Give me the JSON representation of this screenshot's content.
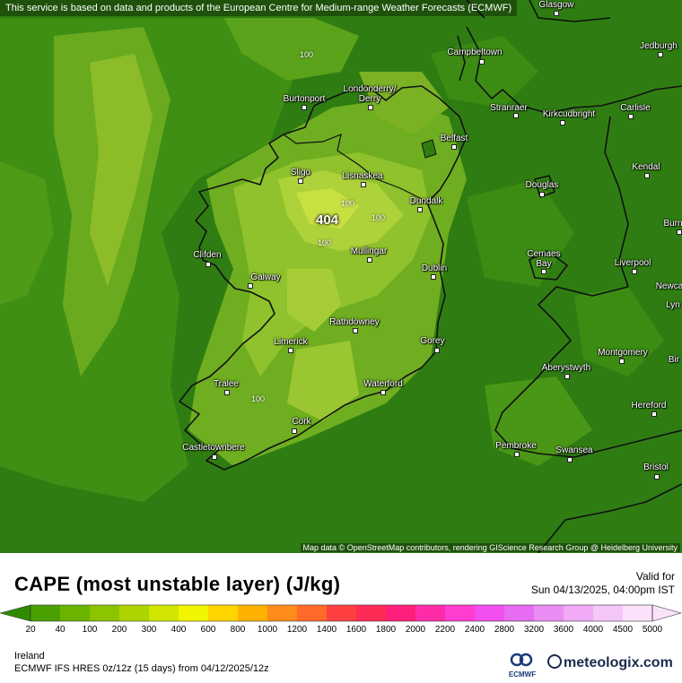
{
  "map": {
    "attribution_top": "This service is based on data and products of the European Centre for Medium-range Weather Forecasts (ECMWF)",
    "attribution_bottom": "Map data © OpenStreetMap contributors, rendering GIScience Research Group @ Heidelberg University",
    "peak_value": "404",
    "contour_label": "100",
    "cities": [
      {
        "name": "Glasgow"
      },
      {
        "name": "Jedburgh"
      },
      {
        "name": "Campbeltown"
      },
      {
        "name": "Londonderry/"
      },
      {
        "name": "Derry"
      },
      {
        "name": "Burtonport"
      },
      {
        "name": "Stranraer"
      },
      {
        "name": "Kirkcudbright"
      },
      {
        "name": "Carlisle"
      },
      {
        "name": "Belfast"
      },
      {
        "name": "Sligo"
      },
      {
        "name": "Lisnaskea"
      },
      {
        "name": "Kendal"
      },
      {
        "name": "Douglas"
      },
      {
        "name": "Dundalk"
      },
      {
        "name": "Burn"
      },
      {
        "name": "Clifden"
      },
      {
        "name": "Mullingar"
      },
      {
        "name": "Dublin"
      },
      {
        "name": "Cemaes"
      },
      {
        "name": "Bay"
      },
      {
        "name": "Liverpool"
      },
      {
        "name": "Galway"
      },
      {
        "name": "Newca"
      },
      {
        "name": "Lyn"
      },
      {
        "name": "Rathdowney"
      },
      {
        "name": "Limerick"
      },
      {
        "name": "Gorey"
      },
      {
        "name": "Montgomery"
      },
      {
        "name": "Aberystwyth"
      },
      {
        "name": "Bir"
      },
      {
        "name": "Tralee"
      },
      {
        "name": "Waterford"
      },
      {
        "name": "Hereford"
      },
      {
        "name": "Cork"
      },
      {
        "name": "Castletownbere"
      },
      {
        "name": "Pembroke"
      },
      {
        "name": "Swansea"
      },
      {
        "name": "Bristol"
      }
    ]
  },
  "legend": {
    "title": "CAPE (most unstable layer) (J/kg)",
    "valid_label": "Valid for",
    "valid_time": "Sun 04/13/2025, 04:00pm IST",
    "ticks": [
      "20",
      "40",
      "100",
      "200",
      "300",
      "400",
      "600",
      "800",
      "1000",
      "1200",
      "1400",
      "1600",
      "1800",
      "2000",
      "2200",
      "2400",
      "2800",
      "3200",
      "3600",
      "4000",
      "4500",
      "5000"
    ],
    "colors": [
      "#2e8b00",
      "#4aa000",
      "#6ab400",
      "#8cc400",
      "#aed400",
      "#d0e600",
      "#f2f500",
      "#ffd500",
      "#ffb000",
      "#ff8c1a",
      "#ff6a2a",
      "#ff4040",
      "#ff2a55",
      "#ff1f7a",
      "#ff2ca8",
      "#ff3dd0",
      "#f24ef0",
      "#e66cf2",
      "#ea8cf4",
      "#f0aaf6",
      "#f5c6f8",
      "#fbe2fb"
    ],
    "region": "Ireland",
    "model": "ECMWF IFS HRES 0z/12z (15 days)  from  04/12/2025/12z",
    "ecmwf_logo": "ECMWF",
    "brand": "meteologix.com"
  }
}
